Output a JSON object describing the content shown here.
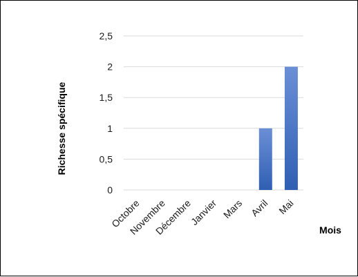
{
  "chart_data": {
    "type": "bar",
    "categories": [
      "Octobre",
      "Novembre",
      "Décembre",
      "Janvier",
      "Mars",
      "Avril",
      "Mai"
    ],
    "values": [
      0,
      0,
      0,
      0,
      0,
      1,
      2
    ],
    "ylabel": "Richesse spécifique",
    "xlabel": "Mois",
    "ylim": [
      0,
      2.5
    ],
    "yticks": [
      "0",
      "0,5",
      "1",
      "1,5",
      "2",
      "2,5"
    ],
    "grid": true,
    "legend": "none",
    "colors": {
      "bar_top": "#6b8fd6",
      "bar_bottom": "#2f5fb3",
      "grid": "#d9d9d9"
    }
  }
}
